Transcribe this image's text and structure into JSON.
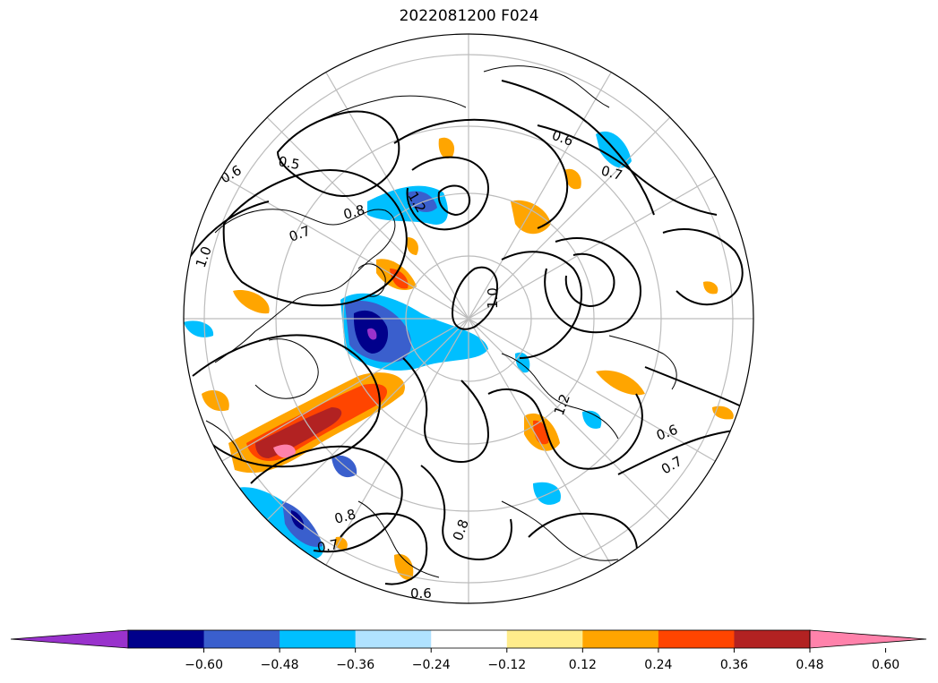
{
  "title": "2022081200 F024",
  "colorbar": {
    "tick_labels": [
      "−0.60",
      "−0.48",
      "−0.36",
      "−0.24",
      "−0.12",
      "0.12",
      "0.24",
      "0.36",
      "0.48",
      "0.60"
    ],
    "colors": [
      "#9932cc",
      "#00008b",
      "#3a5fcd",
      "#00bfff",
      "#b0e2ff",
      "#ffffff",
      "#ffec8b",
      "#ffa500",
      "#ff4500",
      "#b22222",
      "#ff82ab"
    ],
    "extend": "both"
  },
  "map": {
    "projection": "north-polar-stereographic",
    "contour_labels": [
      "0.6",
      "0.7",
      "0.8",
      "1.0",
      "1.2",
      "0.5",
      "0.8",
      "0.6",
      "0.7",
      "1.0",
      "1.2",
      "0.7",
      "0.6",
      "0.7",
      "0.8",
      "0.6"
    ]
  }
}
